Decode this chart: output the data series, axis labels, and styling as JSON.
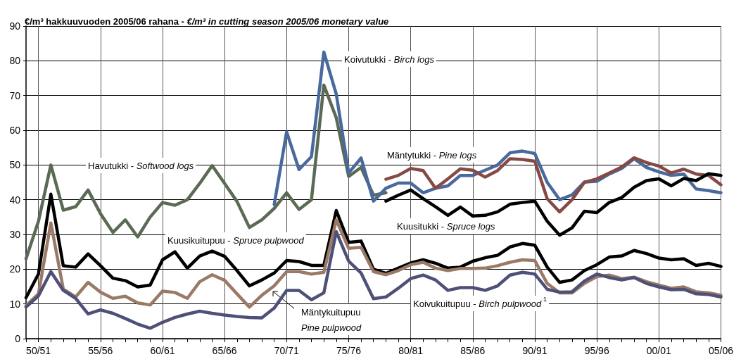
{
  "chart_data": {
    "type": "line",
    "title": "€/m³ hakkuuvuoden 2005/06 rahana - €/m³ in cutting season 2005/06 monetary value",
    "categories": [
      null,
      "50/51",
      null,
      null,
      null,
      null,
      "55/56",
      null,
      null,
      null,
      null,
      "60/61",
      null,
      null,
      null,
      null,
      "65/66",
      null,
      null,
      null,
      null,
      "70/71",
      null,
      null,
      null,
      null,
      "75/76",
      null,
      null,
      null,
      null,
      "80/81",
      null,
      null,
      null,
      null,
      "85/86",
      null,
      null,
      null,
      null,
      "90/91",
      null,
      null,
      null,
      null,
      "95/96",
      null,
      null,
      null,
      null,
      "00/01",
      null,
      null,
      null,
      null,
      "05/06"
    ],
    "ylim": [
      0,
      90
    ],
    "yticks": [
      0,
      10,
      20,
      30,
      40,
      50,
      60,
      70,
      80,
      90
    ],
    "grid": true,
    "legend": false,
    "series": [
      {
        "name": "Havutukki - Softwood logs",
        "color": "#5b6a55",
        "values": [
          23,
          33.8,
          50,
          37,
          38,
          42.8,
          36,
          30.6,
          34.2,
          29.3,
          35,
          39.2,
          38.4,
          40,
          44.7,
          49.8,
          44.7,
          39.5,
          32,
          34.2,
          37.5,
          42,
          37.2,
          40,
          73,
          63.6,
          46.7,
          49.3,
          41.3,
          42,
          null,
          null,
          null,
          null,
          null,
          null,
          null,
          null,
          null,
          null,
          null,
          null,
          null,
          null,
          null,
          null,
          null,
          null,
          null,
          null,
          null,
          null,
          null,
          null,
          null,
          null,
          null
        ]
      },
      {
        "name": "Koivutukki - Birch logs",
        "color": "#4a699c",
        "values": [
          null,
          null,
          null,
          null,
          null,
          null,
          null,
          null,
          null,
          null,
          null,
          null,
          null,
          null,
          null,
          null,
          null,
          null,
          null,
          null,
          38.6,
          59.5,
          48.7,
          52.4,
          82.5,
          70.4,
          47.7,
          52,
          39.6,
          43.3,
          44.8,
          44.8,
          42,
          43.3,
          44,
          47,
          47,
          48.5,
          50,
          53.5,
          54,
          53.3,
          45,
          40,
          41.4,
          45.1,
          45.3,
          47.4,
          49,
          51.8,
          49.3,
          48,
          47,
          47.4,
          43.1,
          42.6,
          42
        ]
      },
      {
        "name": "Mäntytukki - Pine logs",
        "color": "#864a45",
        "values": [
          null,
          null,
          null,
          null,
          null,
          null,
          null,
          null,
          null,
          null,
          null,
          null,
          null,
          null,
          null,
          null,
          null,
          null,
          null,
          null,
          null,
          null,
          null,
          null,
          null,
          null,
          null,
          null,
          null,
          45.9,
          47,
          49,
          48.4,
          43.3,
          46,
          48.9,
          48.5,
          46.5,
          48.4,
          51.8,
          51.6,
          51.1,
          40.3,
          36.5,
          40,
          45,
          46,
          47.7,
          49.4,
          52.1,
          50.7,
          49.7,
          47.7,
          48.8,
          47.4,
          47,
          44.3
        ]
      },
      {
        "name": "Kuusitukki - Spruce logs",
        "color": "#000000",
        "values": [
          null,
          null,
          null,
          null,
          null,
          null,
          null,
          null,
          null,
          null,
          null,
          null,
          null,
          null,
          null,
          null,
          null,
          null,
          null,
          null,
          null,
          null,
          null,
          null,
          null,
          null,
          null,
          null,
          null,
          39.6,
          41.3,
          42.8,
          40.3,
          38,
          35.5,
          37.9,
          35.3,
          35.5,
          36.5,
          38.7,
          39.2,
          39.6,
          33.8,
          29.8,
          31.9,
          36.7,
          36.3,
          39.2,
          40.6,
          43.6,
          45.5,
          46,
          44,
          46.1,
          45.5,
          47.5,
          47
        ]
      },
      {
        "name": "Kuusikuitupuu - Spruce pulpwood",
        "color": "#000000",
        "values": [
          11.8,
          18.6,
          41.6,
          21,
          20.6,
          24.4,
          21,
          17.4,
          16.7,
          14.9,
          15.4,
          22.7,
          25,
          20.3,
          23.8,
          25.2,
          23.7,
          19.6,
          15.2,
          16.9,
          18.9,
          22.5,
          22.2,
          21.1,
          21.1,
          36.9,
          27.7,
          28.1,
          20,
          18.8,
          20.3,
          21.8,
          22.7,
          21.7,
          20.3,
          20.6,
          22.3,
          23.3,
          24,
          26.4,
          27.4,
          26.9,
          20.6,
          16.2,
          16.9,
          19.6,
          21.3,
          23.5,
          23.8,
          25.4,
          24.5,
          23.2,
          22.7,
          23,
          21.1,
          21.7,
          20.8
        ]
      },
      {
        "name": "Mäntykuitupuu\nPine pulpwood",
        "color": "#9a7a66",
        "values": [
          9.5,
          12.9,
          33.3,
          14.3,
          12,
          16.2,
          13.4,
          11.6,
          12.2,
          10.3,
          9.7,
          13.7,
          13.3,
          11.6,
          16.4,
          18.4,
          16.8,
          12.9,
          9.1,
          12.5,
          15.2,
          19.3,
          19.3,
          18.6,
          19.1,
          34.2,
          26,
          26.3,
          19.3,
          18.4,
          19.6,
          21.3,
          22,
          20.3,
          19.6,
          20.2,
          20.2,
          20.3,
          21,
          22,
          22.7,
          22.5,
          15.9,
          13.2,
          13.2,
          15.9,
          17.9,
          18.3,
          17.3,
          17.7,
          16.4,
          15.4,
          14.5,
          14.9,
          13.5,
          13.2,
          12.5
        ]
      },
      {
        "name": "Koivukuitupuu - Birch pulpwood$^{1}$",
        "color": "#4e5078",
        "values": [
          9.1,
          12.3,
          19.3,
          13.9,
          11.6,
          7.1,
          8.3,
          7.3,
          5.8,
          4.2,
          3,
          4.7,
          6.1,
          7.1,
          7.9,
          7.3,
          6.8,
          6.4,
          6.1,
          6,
          8.8,
          13.9,
          13.9,
          11.2,
          13.2,
          30.8,
          22.3,
          18.9,
          11.5,
          12,
          14.5,
          17.3,
          18.3,
          16.9,
          13.9,
          14.7,
          14.7,
          13.9,
          15.2,
          18.3,
          19.1,
          18.6,
          14.2,
          13.4,
          13.5,
          16.6,
          18.6,
          17.6,
          16.9,
          17.6,
          15.9,
          14.9,
          14.1,
          14.2,
          12.9,
          12.7,
          12
        ]
      }
    ]
  }
}
